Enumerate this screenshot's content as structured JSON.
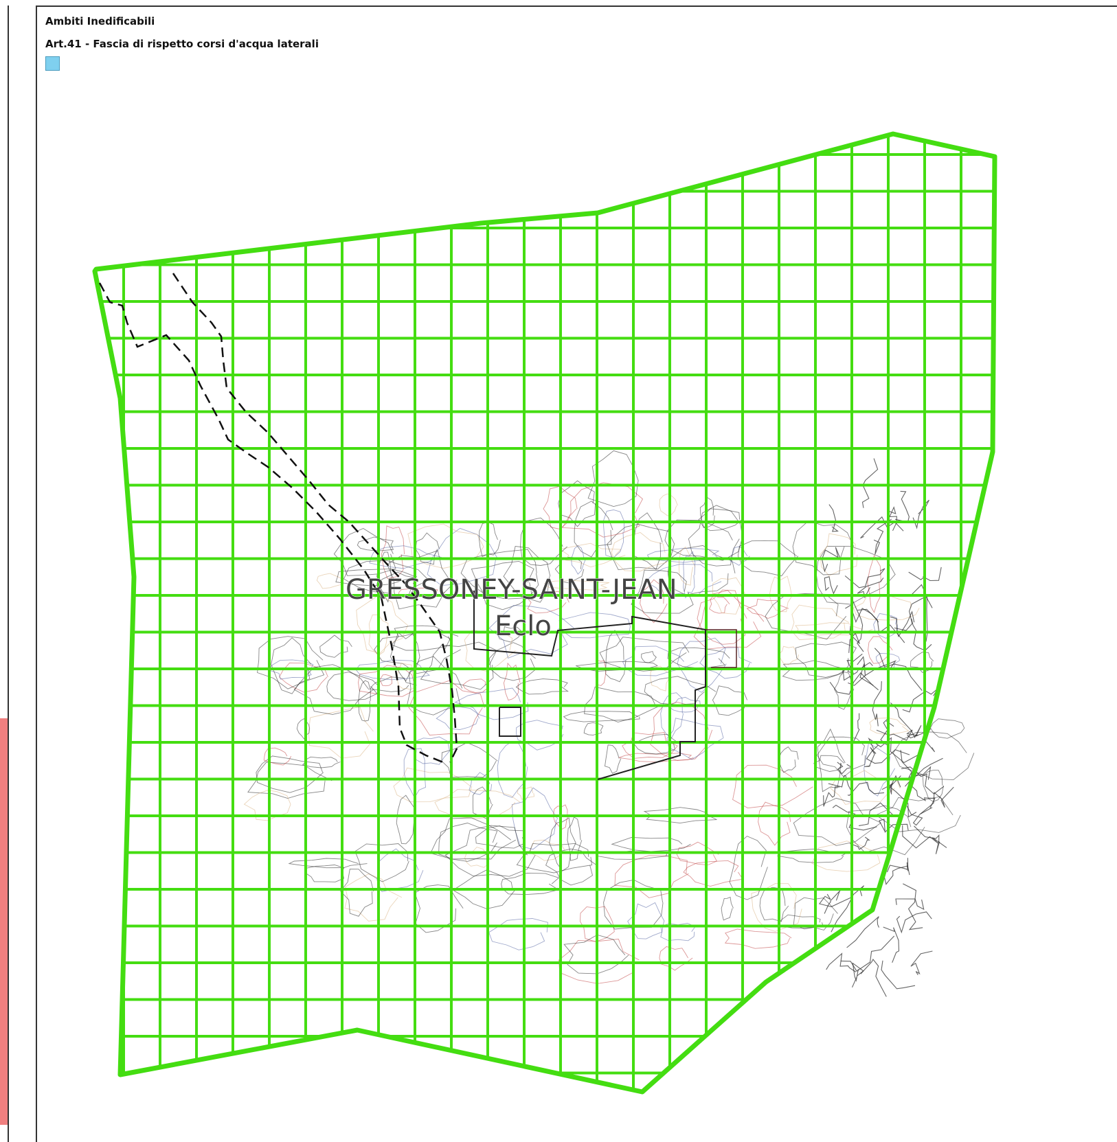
{
  "legend": {
    "category": "Ambiti Inedificabili",
    "item_label": "Art.41 - Fascia di rispetto corsi d'acqua laterali",
    "item_color": "#7fd0ef"
  },
  "map": {
    "place_name": "GRESSONEY-SAINT-JEAN",
    "place_sublabel": "Eclo",
    "zone_color": "#44dd11",
    "contour_color": "#222222",
    "boundary_style": "dashed"
  },
  "left_pane": {
    "accent_color": "#f08080"
  }
}
